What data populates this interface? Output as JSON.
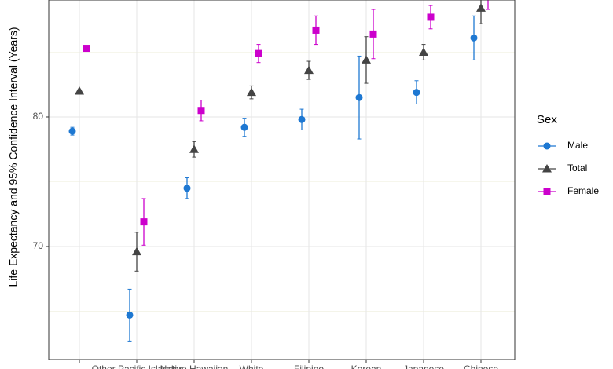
{
  "chart_data": {
    "type": "errorbar_points",
    "y_label": "Life Expectancy and 95% Confidence Interval (Years)",
    "categories": [
      null,
      "Other Pacific Islander",
      "Native Hawaiian",
      "White",
      "Filipino",
      "Korean",
      "Japanese",
      "Chinese"
    ],
    "legend_title": "Sex",
    "legend_position": "right",
    "grid": true,
    "ylim": [
      61.27,
      89.03
    ],
    "yticks": [
      70,
      80
    ],
    "minor_yticks": [
      65,
      75,
      85
    ],
    "series": [
      {
        "name": "Male",
        "color": "#1e78d2",
        "marker": "circle",
        "values": [
          78.9,
          64.7,
          74.5,
          79.2,
          79.8,
          81.5,
          81.9,
          86.1
        ],
        "errors": [
          0.3,
          2.0,
          0.8,
          0.7,
          0.8,
          3.2,
          0.9,
          1.7
        ]
      },
      {
        "name": "Total",
        "color": "#444444",
        "marker": "triangle",
        "values": [
          82.0,
          69.6,
          77.5,
          81.9,
          83.6,
          84.4,
          85.0,
          88.4
        ],
        "errors": [
          0.1,
          1.5,
          0.6,
          0.5,
          0.7,
          1.8,
          0.6,
          1.2
        ]
      },
      {
        "name": "Female",
        "color": "#cc00cc",
        "marker": "square",
        "values": [
          85.3,
          71.9,
          80.5,
          84.9,
          86.7,
          86.4,
          87.7,
          89.3
        ],
        "errors": [
          0.2,
          1.8,
          0.8,
          0.7,
          1.1,
          1.9,
          0.9,
          1.0
        ]
      }
    ]
  }
}
